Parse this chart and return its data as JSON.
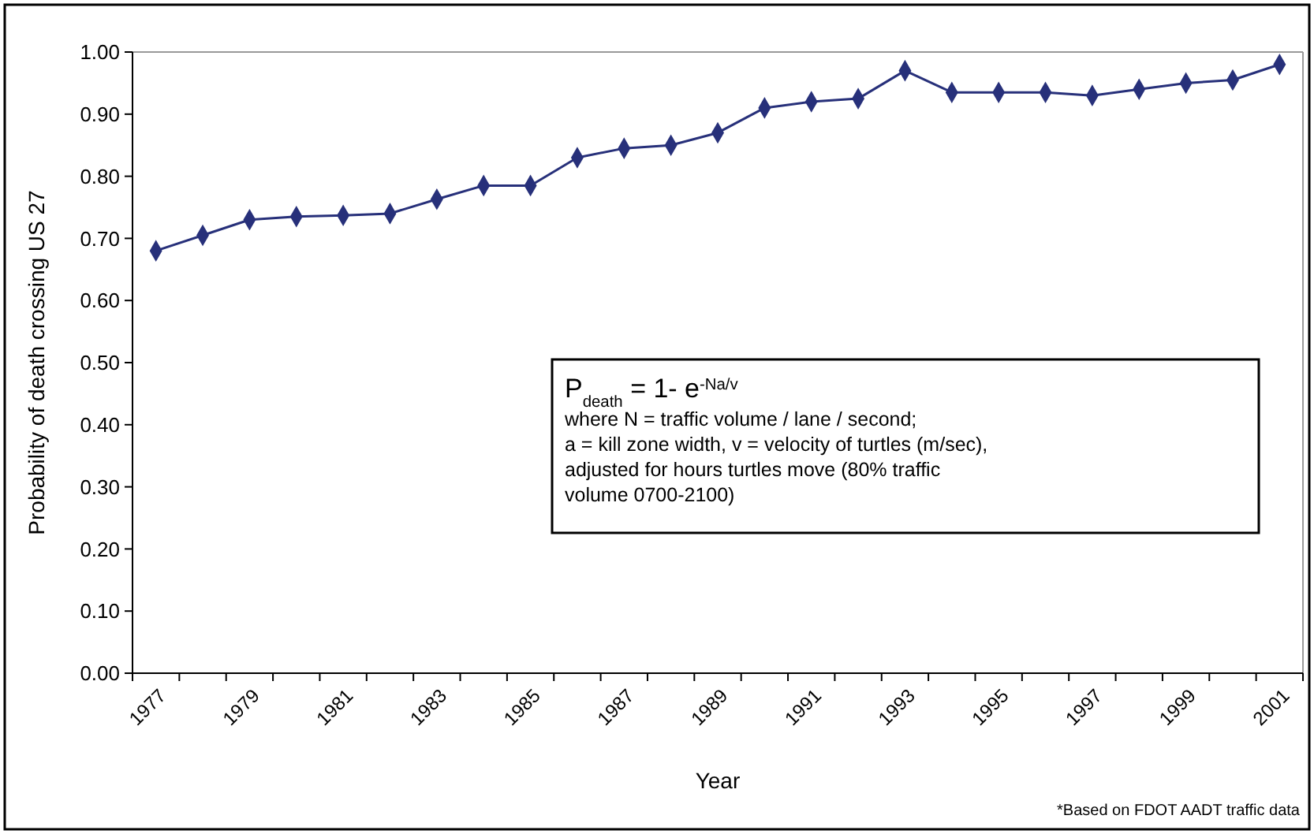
{
  "chart_data": {
    "type": "line",
    "xlabel": "Year",
    "ylabel": "Probability of death crossing US 27",
    "categories": [
      "1977",
      null,
      "1979",
      null,
      "1981",
      null,
      "1983",
      null,
      "1985",
      null,
      "1987",
      null,
      "1989",
      null,
      "1991",
      null,
      "1993",
      null,
      "1995",
      null,
      "1997",
      null,
      "1999",
      null,
      "2001"
    ],
    "series": [
      {
        "color": "#27307a",
        "values": [
          0.68,
          0.705,
          0.73,
          0.735,
          0.737,
          0.74,
          0.763,
          0.785,
          0.785,
          0.83,
          0.845,
          0.85,
          0.87,
          0.91,
          0.92,
          0.925,
          0.97,
          0.935,
          0.935,
          0.935,
          0.93,
          0.94,
          0.95,
          0.955,
          0.98
        ]
      }
    ],
    "ylim": [
      0,
      1
    ],
    "yticks": [
      {
        "value": 0,
        "label": "0.00"
      },
      {
        "value": 0.1,
        "label": "0.10"
      },
      {
        "value": 0.2,
        "label": "0.20"
      },
      {
        "value": 0.3,
        "label": "0.30"
      },
      {
        "value": 0.4,
        "label": "0.40"
      },
      {
        "value": 0.5,
        "label": "0.50"
      },
      {
        "value": 0.6,
        "label": "0.60"
      },
      {
        "value": 0.7,
        "label": "0.70"
      },
      {
        "value": 0.8,
        "label": "0.80"
      },
      {
        "value": 0.9,
        "label": "0.90"
      },
      {
        "value": 1,
        "label": "1.00"
      }
    ],
    "grid": false,
    "marker": "diamond",
    "line_style": "solid",
    "annotations": [
      "P$_{death}$ = 1- e$^{-Na/v}$",
      "where N = traffic volume / lane / second;",
      "a = kill zone width, v = velocity of turtles (m/sec),",
      "adjusted for hours turtles move (80% traffic",
      "volume 0700-2100)",
      "*Based on FDOT AADT traffic data"
    ]
  }
}
